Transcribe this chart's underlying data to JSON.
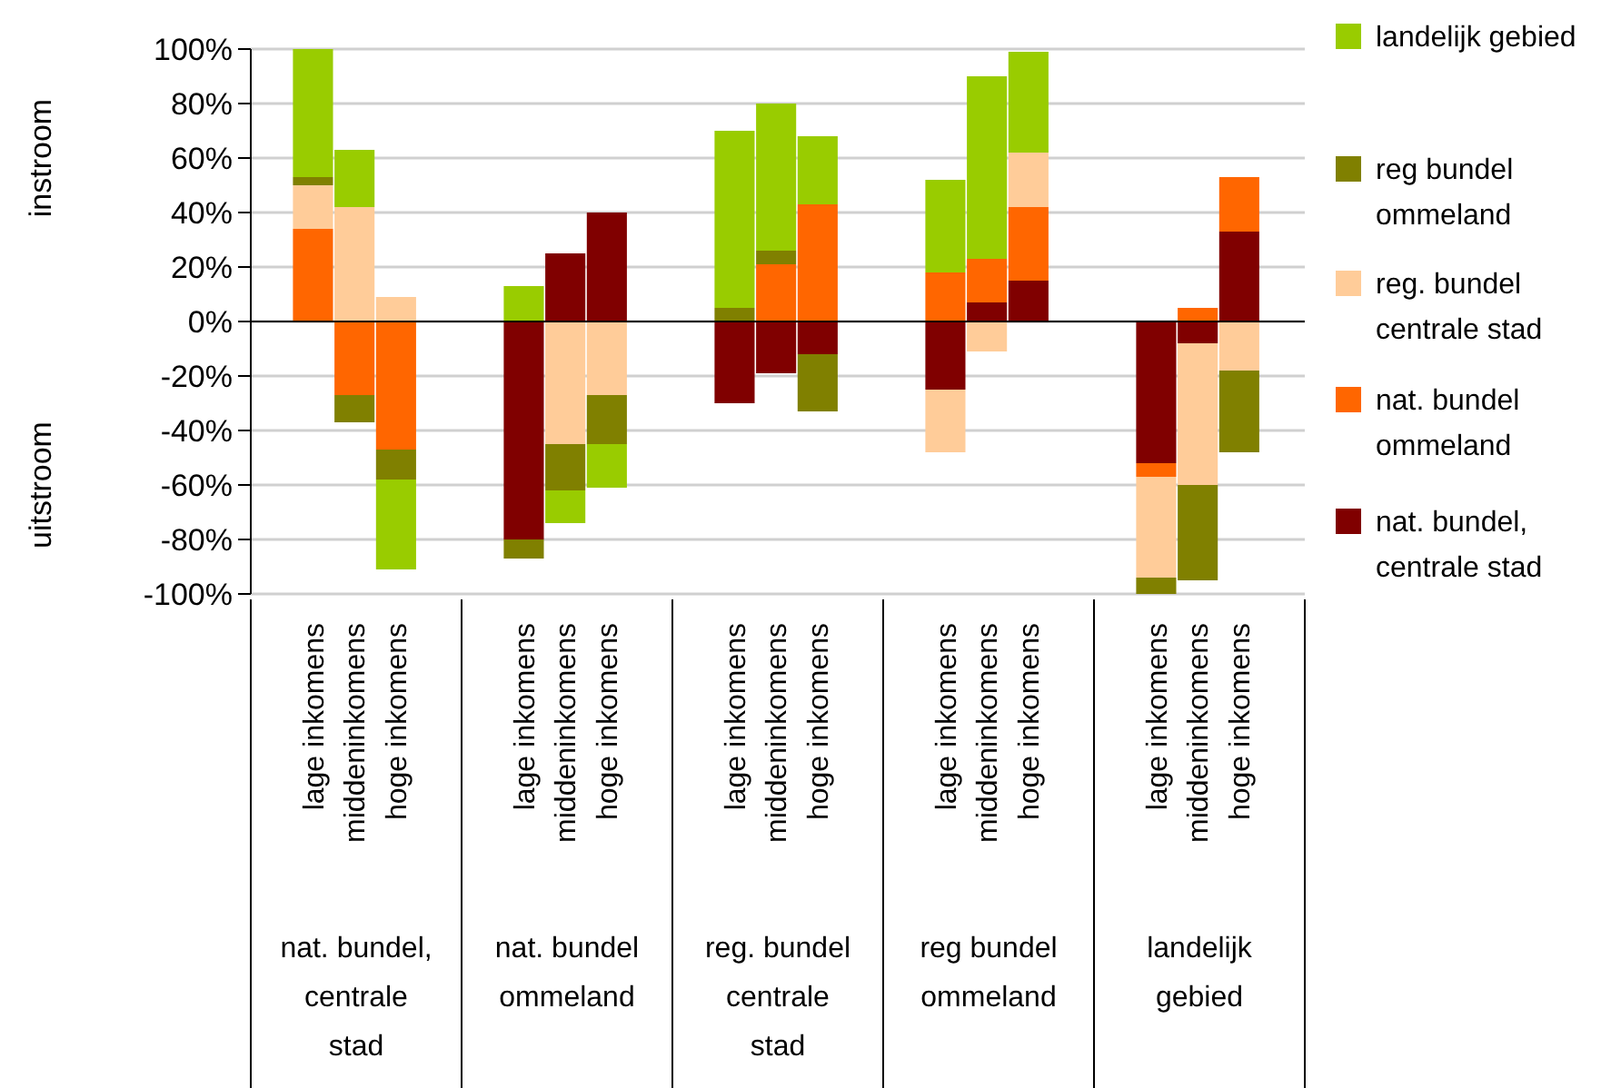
{
  "chart_data": [
    {
      "type": "bar",
      "stacked": true,
      "xlabel": "nat. bundel,\ncentrale\nstad",
      "ylabel": "instroom",
      "annotations": [
        "uitstroom"
      ],
      "categories": [
        "lage inkomens",
        "middeninkomens",
        "hoge inkomens"
      ],
      "series": [
        {
          "color": "#ff6600",
          "values": [
            34,
            -27,
            -47
          ]
        },
        {
          "color": "#ffcc99",
          "values": [
            16,
            42,
            9
          ]
        },
        {
          "color": "#808000",
          "values": [
            3,
            -10,
            -11
          ]
        },
        {
          "color": "#99cc00",
          "values": [
            47,
            21,
            -33
          ]
        }
      ],
      "ylim": [
        -100,
        100
      ],
      "yticks": [
        {
          "value": -100,
          "label": "-100%"
        },
        {
          "value": -80,
          "label": "-80%"
        },
        {
          "value": -60,
          "label": "-60%"
        },
        {
          "value": -40,
          "label": "-40%"
        },
        {
          "value": -20,
          "label": "-20%"
        },
        {
          "value": 0,
          "label": "0%"
        },
        {
          "value": 20,
          "label": "20%"
        },
        {
          "value": 40,
          "label": "40%"
        },
        {
          "value": 60,
          "label": "60%"
        },
        {
          "value": 80,
          "label": "80%"
        },
        {
          "value": 100,
          "label": "100%"
        }
      ],
      "grid": "y"
    },
    {
      "type": "bar",
      "stacked": true,
      "xlabel": "nat. bundel\nommeland",
      "categories": [
        "lage inkomens",
        "middeninkomens",
        "hoge inkomens"
      ],
      "series": [
        {
          "color": "#800000",
          "values": [
            -80,
            25,
            40
          ]
        },
        {
          "color": "#ffcc99",
          "values": [
            null,
            -45,
            -27
          ]
        },
        {
          "color": "#808000",
          "values": [
            -7,
            -17,
            -18
          ]
        },
        {
          "color": "#99cc00",
          "values": [
            13,
            -12,
            -16
          ]
        }
      ],
      "ylim": [
        -100,
        100
      ],
      "yticks": [
        -100,
        -80,
        -60,
        -40,
        -20,
        0,
        20,
        40,
        60,
        80,
        100
      ],
      "grid": "y",
      "tick_labels": "x"
    },
    {
      "type": "bar",
      "stacked": true,
      "xlabel": "reg. bundel\ncentrale\nstad",
      "categories": [
        "lage inkomens",
        "middeninkomens",
        "hoge inkomens"
      ],
      "series": [
        {
          "color": "#800000",
          "values": [
            -30,
            -19,
            -12
          ]
        },
        {
          "color": "#ff6600",
          "values": [
            null,
            21,
            43
          ]
        },
        {
          "color": "#808000",
          "values": [
            5,
            5,
            -21
          ]
        },
        {
          "color": "#99cc00",
          "values": [
            65,
            54,
            25
          ]
        }
      ],
      "ylim": [
        -100,
        100
      ],
      "yticks": [
        -100,
        -80,
        -60,
        -40,
        -20,
        0,
        20,
        40,
        60,
        80,
        100
      ],
      "grid": "y",
      "tick_labels": "x"
    },
    {
      "type": "bar",
      "stacked": true,
      "xlabel": "reg bundel\nommeland",
      "categories": [
        "lage inkomens",
        "middeninkomens",
        "hoge inkomens"
      ],
      "series": [
        {
          "color": "#800000",
          "values": [
            -25,
            7,
            15
          ]
        },
        {
          "color": "#ff6600",
          "values": [
            18,
            16,
            27
          ]
        },
        {
          "color": "#ffcc99",
          "values": [
            -23,
            -11,
            20
          ]
        },
        {
          "color": "#99cc00",
          "values": [
            34,
            67,
            37
          ]
        }
      ],
      "ylim": [
        -100,
        100
      ],
      "yticks": [
        -100,
        -80,
        -60,
        -40,
        -20,
        0,
        20,
        40,
        60,
        80,
        100
      ],
      "grid": "y",
      "tick_labels": "x"
    },
    {
      "type": "bar",
      "stacked": true,
      "xlabel": "landelijk\ngebied",
      "categories": [
        "lage inkomens",
        "middeninkomens",
        "hoge inkomens"
      ],
      "series": [
        {
          "name": "nat. bundel, centrale stad",
          "color": "#800000",
          "values": [
            -52,
            -8,
            33
          ]
        },
        {
          "name": "nat. bundel ommeland",
          "color": "#ff6600",
          "values": [
            -5,
            5,
            20
          ]
        },
        {
          "name": "reg. bundel centrale stad",
          "color": "#ffcc99",
          "values": [
            -37,
            -52,
            -18
          ]
        },
        {
          "name": "reg bundel ommeland",
          "color": "#808000",
          "values": [
            -6,
            -35,
            -30
          ]
        },
        {
          "name": "landelijk gebied",
          "color": "#99cc00",
          "values": [
            null,
            null,
            null
          ]
        }
      ],
      "ylim": [
        -100,
        100
      ],
      "yticks": [
        -100,
        -80,
        -60,
        -40,
        -20,
        0,
        20,
        40,
        60,
        80,
        100
      ],
      "grid": "y",
      "tick_labels": "x",
      "legend": "right"
    }
  ]
}
